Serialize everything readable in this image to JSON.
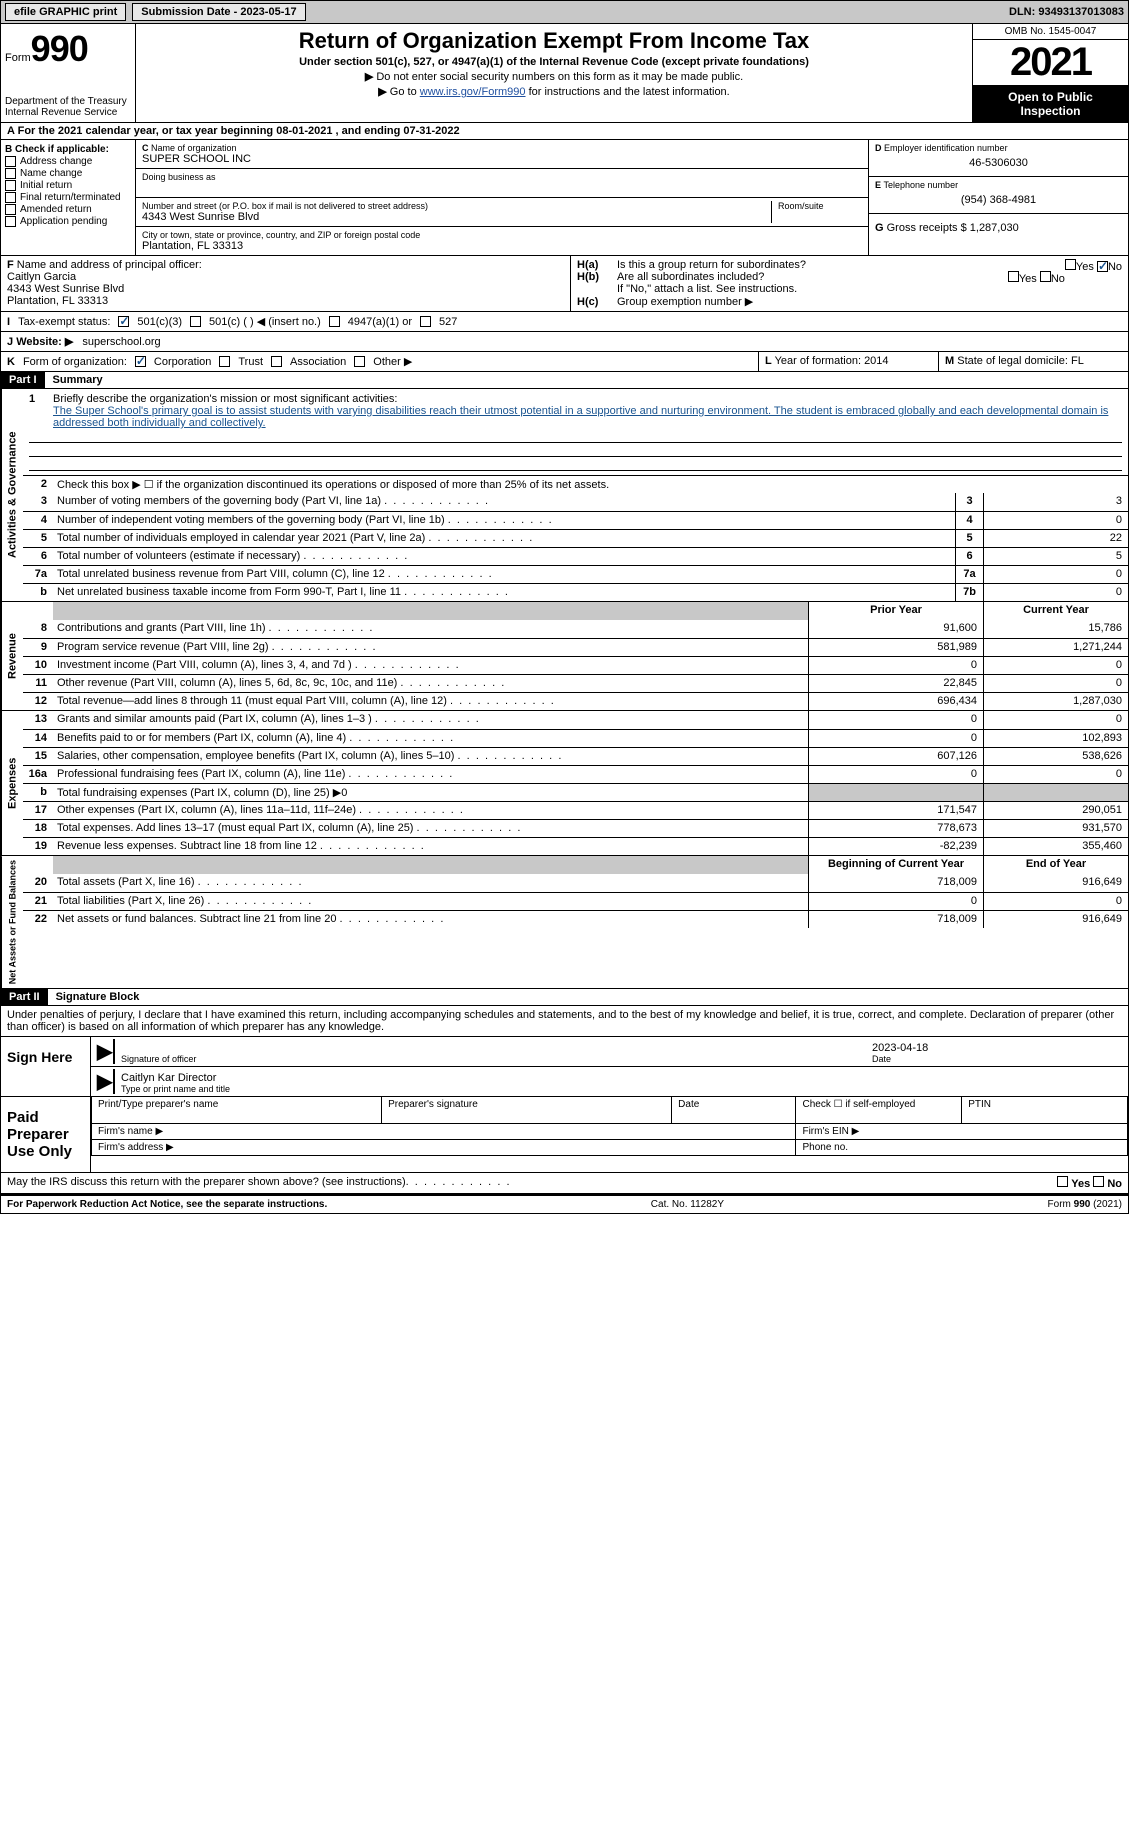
{
  "topbar": {
    "efile": "efile GRAPHIC print",
    "submission_label": "Submission Date - ",
    "submission_date": "2023-05-17",
    "dln_label": "DLN: ",
    "dln": "93493137013083"
  },
  "header": {
    "form_word": "Form",
    "form_num": "990",
    "title": "Return of Organization Exempt From Income Tax",
    "subtitle": "Under section 501(c), 527, or 4947(a)(1) of the Internal Revenue Code (except private foundations)",
    "inst1": "Do not enter social security numbers on this form as it may be made public.",
    "inst2_pre": "Go to ",
    "inst2_link": "www.irs.gov/Form990",
    "inst2_post": " for instructions and the latest information.",
    "treasury": "Department of the Treasury\nInternal Revenue Service",
    "omb": "OMB No. 1545-0047",
    "year": "2021",
    "open": "Open to Public Inspection"
  },
  "A": {
    "text_pre": "For the 2021 calendar year, or tax year beginning ",
    "begin": "08-01-2021",
    "mid": " , and ending ",
    "end": "07-31-2022"
  },
  "B": {
    "label": "Check if applicable:",
    "opts": [
      "Address change",
      "Name change",
      "Initial return",
      "Final return/terminated",
      "Amended return",
      "Application pending"
    ]
  },
  "C": {
    "name_label": "Name of organization",
    "name": "SUPER SCHOOL INC",
    "dba_label": "Doing business as",
    "addr_label": "Number and street (or P.O. box if mail is not delivered to street address)",
    "room_label": "Room/suite",
    "addr": "4343 West Sunrise Blvd",
    "city_label": "City or town, state or province, country, and ZIP or foreign postal code",
    "city": "Plantation, FL  33313"
  },
  "D": {
    "label": "Employer identification number",
    "ein": "46-5306030"
  },
  "E": {
    "label": "Telephone number",
    "phone": "(954) 368-4981"
  },
  "G": {
    "label": "Gross receipts $ ",
    "val": "1,287,030"
  },
  "F": {
    "label": "Name and address of principal officer:",
    "name": "Caitlyn Garcia",
    "addr1": "4343 West Sunrise Blvd",
    "addr2": "Plantation, FL  33313"
  },
  "H": {
    "a": "Is this a group return for subordinates?",
    "b": "Are all subordinates included?",
    "b_note": "If \"No,\" attach a list. See instructions.",
    "c_label": "Group exemption number ▶",
    "yes": "Yes",
    "no": "No"
  },
  "I": {
    "label": "Tax-exempt status:",
    "o1": "501(c)(3)",
    "o2": "501(c) (   ) ◀ (insert no.)",
    "o3": "4947(a)(1) or",
    "o4": "527"
  },
  "J": {
    "label": "Website: ▶",
    "val": "superschool.org"
  },
  "K": {
    "label": "Form of organization:",
    "opts": [
      "Corporation",
      "Trust",
      "Association",
      "Other ▶"
    ]
  },
  "L": {
    "label": "Year of formation: ",
    "val": "2014"
  },
  "M": {
    "label": "State of legal domicile: ",
    "val": "FL"
  },
  "part1": {
    "header": "Part I",
    "title": "Summary",
    "line1_label": "Briefly describe the organization's mission or most significant activities:",
    "line1_text": "The Super School's primary goal is to assist students with varying disabilities reach their utmost potential in a supportive and nurturing environment. The student is embraced globally and each developmental domain is addressed both individually and collectively.",
    "line2": "Check this box ▶ ☐ if the organization discontinued its operations or disposed of more than 25% of its net assets.",
    "sections": {
      "governance": "Activities & Governance",
      "revenue": "Revenue",
      "expenses": "Expenses",
      "netassets": "Net Assets or Fund Balances"
    },
    "col_prior": "Prior Year",
    "col_current": "Current Year",
    "col_begin": "Beginning of Current Year",
    "col_end": "End of Year",
    "rows_gov": [
      {
        "n": "3",
        "t": "Number of voting members of the governing body (Part VI, line 1a)",
        "box": "3",
        "v": "3"
      },
      {
        "n": "4",
        "t": "Number of independent voting members of the governing body (Part VI, line 1b)",
        "box": "4",
        "v": "0"
      },
      {
        "n": "5",
        "t": "Total number of individuals employed in calendar year 2021 (Part V, line 2a)",
        "box": "5",
        "v": "22"
      },
      {
        "n": "6",
        "t": "Total number of volunteers (estimate if necessary)",
        "box": "6",
        "v": "5"
      },
      {
        "n": "7a",
        "t": "Total unrelated business revenue from Part VIII, column (C), line 12",
        "box": "7a",
        "v": "0"
      },
      {
        "n": "b",
        "t": "Net unrelated business taxable income from Form 990-T, Part I, line 11",
        "box": "7b",
        "v": "0"
      }
    ],
    "rows_rev": [
      {
        "n": "8",
        "t": "Contributions and grants (Part VIII, line 1h)",
        "p": "91,600",
        "c": "15,786"
      },
      {
        "n": "9",
        "t": "Program service revenue (Part VIII, line 2g)",
        "p": "581,989",
        "c": "1,271,244"
      },
      {
        "n": "10",
        "t": "Investment income (Part VIII, column (A), lines 3, 4, and 7d )",
        "p": "0",
        "c": "0"
      },
      {
        "n": "11",
        "t": "Other revenue (Part VIII, column (A), lines 5, 6d, 8c, 9c, 10c, and 11e)",
        "p": "22,845",
        "c": "0"
      },
      {
        "n": "12",
        "t": "Total revenue—add lines 8 through 11 (must equal Part VIII, column (A), line 12)",
        "p": "696,434",
        "c": "1,287,030"
      }
    ],
    "rows_exp": [
      {
        "n": "13",
        "t": "Grants and similar amounts paid (Part IX, column (A), lines 1–3 )",
        "p": "0",
        "c": "0"
      },
      {
        "n": "14",
        "t": "Benefits paid to or for members (Part IX, column (A), line 4)",
        "p": "0",
        "c": "102,893"
      },
      {
        "n": "15",
        "t": "Salaries, other compensation, employee benefits (Part IX, column (A), lines 5–10)",
        "p": "607,126",
        "c": "538,626"
      },
      {
        "n": "16a",
        "t": "Professional fundraising fees (Part IX, column (A), line 11e)",
        "p": "0",
        "c": "0"
      },
      {
        "n": "b",
        "t": "Total fundraising expenses (Part IX, column (D), line 25) ▶0",
        "p": "",
        "c": "",
        "gray": true
      },
      {
        "n": "17",
        "t": "Other expenses (Part IX, column (A), lines 11a–11d, 11f–24e)",
        "p": "171,547",
        "c": "290,051"
      },
      {
        "n": "18",
        "t": "Total expenses. Add lines 13–17 (must equal Part IX, column (A), line 25)",
        "p": "778,673",
        "c": "931,570"
      },
      {
        "n": "19",
        "t": "Revenue less expenses. Subtract line 18 from line 12",
        "p": "-82,239",
        "c": "355,460"
      }
    ],
    "rows_net": [
      {
        "n": "20",
        "t": "Total assets (Part X, line 16)",
        "p": "718,009",
        "c": "916,649"
      },
      {
        "n": "21",
        "t": "Total liabilities (Part X, line 26)",
        "p": "0",
        "c": "0"
      },
      {
        "n": "22",
        "t": "Net assets or fund balances. Subtract line 21 from line 20",
        "p": "718,009",
        "c": "916,649"
      }
    ]
  },
  "part2": {
    "header": "Part II",
    "title": "Signature Block",
    "declaration": "Under penalties of perjury, I declare that I have examined this return, including accompanying schedules and statements, and to the best of my knowledge and belief, it is true, correct, and complete. Declaration of preparer (other than officer) is based on all information of which preparer has any knowledge."
  },
  "sign": {
    "left": "Sign Here",
    "sig_label": "Signature of officer",
    "date_label": "Date",
    "date": "2023-04-18",
    "name": "Caitlyn Kar  Director",
    "name_label": "Type or print name and title"
  },
  "preparer": {
    "left": "Paid Preparer Use Only",
    "h1": "Print/Type preparer's name",
    "h2": "Preparer's signature",
    "h3": "Date",
    "h4_pre": "Check ☐ if self-employed",
    "h5": "PTIN",
    "firm_name": "Firm's name    ▶",
    "firm_ein": "Firm's EIN ▶",
    "firm_addr": "Firm's address ▶",
    "phone": "Phone no."
  },
  "discuss": {
    "text": "May the IRS discuss this return with the preparer shown above? (see instructions)",
    "yes": "Yes",
    "no": "No"
  },
  "footer": {
    "left": "For Paperwork Reduction Act Notice, see the separate instructions.",
    "mid": "Cat. No. 11282Y",
    "right": "Form 990 (2021)"
  }
}
